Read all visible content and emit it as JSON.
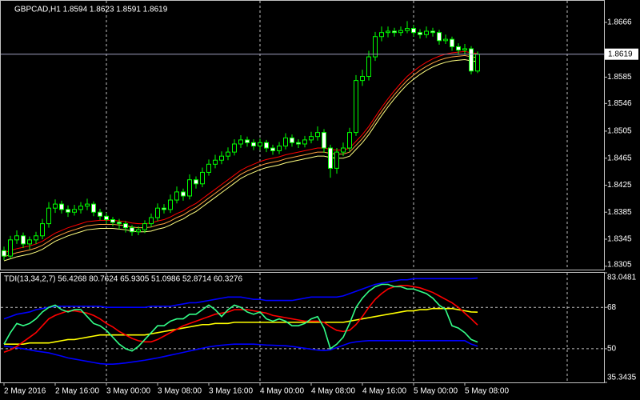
{
  "chart_data": [
    {
      "type": "candlestick",
      "title": "GBPCAD,H1  1.8594 1.8623 1.8591 1.8619",
      "categories": [
        "2 May 2016",
        null,
        null,
        null,
        null,
        null,
        null,
        null,
        "2 May 16:00",
        null,
        null,
        null,
        null,
        null,
        null,
        null,
        "3 May 00:00",
        null,
        null,
        null,
        null,
        null,
        null,
        null,
        "3 May 08:00",
        null,
        null,
        null,
        null,
        null,
        null,
        null,
        "3 May 16:00",
        null,
        null,
        null,
        null,
        null,
        null,
        null,
        "4 May 00:00",
        null,
        null,
        null,
        null,
        null,
        null,
        null,
        "4 May 08:00",
        null,
        null,
        null,
        null,
        null,
        null,
        null,
        "4 May 16:00",
        null,
        null,
        null,
        null,
        null,
        null,
        null,
        "5 May 00:00",
        null,
        null,
        null,
        null,
        null,
        null,
        null,
        "5 May 08:00",
        null,
        null
      ],
      "open": [
        1.8328,
        1.832,
        1.8344,
        1.835,
        1.8338,
        1.8344,
        1.835,
        1.8368,
        1.8391,
        1.8397,
        1.8389,
        1.8385,
        1.8389,
        1.8394,
        1.8397,
        1.8385,
        1.8379,
        1.8374,
        1.837,
        1.8368,
        1.8362,
        1.8356,
        1.8359,
        1.8368,
        1.8377,
        1.8391,
        1.8389,
        1.8403,
        1.8415,
        1.8409,
        1.8433,
        1.8427,
        1.8444,
        1.8456,
        1.8462,
        1.8468,
        1.8474,
        1.8486,
        1.8492,
        1.8488,
        1.8483,
        1.8488,
        1.848,
        1.8476,
        1.8483,
        1.8495,
        1.8488,
        1.8486,
        1.8492,
        1.8497,
        1.8503,
        1.848,
        1.845,
        1.8474,
        1.848,
        1.8503,
        1.858,
        1.8586,
        1.8615,
        1.8645,
        1.8651,
        1.8653,
        1.8651,
        1.8654,
        1.8657,
        1.8651,
        1.8648,
        1.8653,
        1.8651,
        1.8639,
        1.8641,
        1.863,
        1.8625,
        1.8627,
        1.8594
      ],
      "high": [
        1.8334,
        1.835,
        1.8358,
        1.8355,
        1.8349,
        1.8356,
        1.8375,
        1.84,
        1.8404,
        1.8402,
        1.8395,
        1.8396,
        1.84,
        1.8405,
        1.8401,
        1.839,
        1.8384,
        1.8378,
        1.8375,
        1.8372,
        1.8366,
        1.8364,
        1.8373,
        1.8383,
        1.8398,
        1.8397,
        1.8411,
        1.8423,
        1.842,
        1.8441,
        1.8438,
        1.8451,
        1.8463,
        1.847,
        1.8475,
        1.8481,
        1.8493,
        1.8499,
        1.8497,
        1.8493,
        1.8494,
        1.8492,
        1.8485,
        1.8489,
        1.8502,
        1.85,
        1.8493,
        1.8498,
        1.8504,
        1.8512,
        1.8508,
        1.8485,
        1.848,
        1.8488,
        1.851,
        1.8588,
        1.8596,
        1.8624,
        1.8652,
        1.866,
        1.866,
        1.8658,
        1.866,
        1.8668,
        1.8662,
        1.8656,
        1.866,
        1.8658,
        1.8655,
        1.8648,
        1.8645,
        1.8635,
        1.8634,
        1.8631,
        1.8623
      ],
      "low": [
        1.8314,
        1.8316,
        1.8338,
        1.8332,
        1.833,
        1.8338,
        1.8345,
        1.8362,
        1.8384,
        1.8383,
        1.8378,
        1.838,
        1.8383,
        1.8388,
        1.8379,
        1.8373,
        1.8368,
        1.8364,
        1.836,
        1.8355,
        1.835,
        1.8351,
        1.8354,
        1.8363,
        1.8372,
        1.8383,
        1.8384,
        1.8398,
        1.8402,
        1.8404,
        1.842,
        1.8422,
        1.8439,
        1.845,
        1.8456,
        1.8462,
        1.8469,
        1.848,
        1.8482,
        1.8477,
        1.8477,
        1.8474,
        1.847,
        1.8471,
        1.8478,
        1.8482,
        1.848,
        1.8481,
        1.8487,
        1.8491,
        1.8473,
        1.8436,
        1.8442,
        1.8468,
        1.8475,
        1.8498,
        1.8572,
        1.858,
        1.8609,
        1.8638,
        1.8644,
        1.8645,
        1.8646,
        1.865,
        1.8645,
        1.8642,
        1.8643,
        1.8645,
        1.8633,
        1.8634,
        1.8624,
        1.8618,
        1.8619,
        1.8589,
        1.8591
      ],
      "close": [
        1.832,
        1.8344,
        1.835,
        1.8338,
        1.8344,
        1.835,
        1.8368,
        1.8391,
        1.8397,
        1.8389,
        1.8385,
        1.8389,
        1.8394,
        1.8397,
        1.8385,
        1.8379,
        1.8374,
        1.837,
        1.8368,
        1.8362,
        1.8356,
        1.8359,
        1.8368,
        1.8377,
        1.8391,
        1.8389,
        1.8403,
        1.8415,
        1.8409,
        1.8433,
        1.8427,
        1.8444,
        1.8456,
        1.8462,
        1.8468,
        1.8474,
        1.8486,
        1.8492,
        1.8488,
        1.8483,
        1.8488,
        1.848,
        1.8476,
        1.8483,
        1.8495,
        1.8488,
        1.8486,
        1.8492,
        1.8497,
        1.8503,
        1.848,
        1.845,
        1.8474,
        1.848,
        1.8503,
        1.858,
        1.8586,
        1.8615,
        1.8645,
        1.8651,
        1.8653,
        1.8651,
        1.8654,
        1.8657,
        1.8651,
        1.8648,
        1.8653,
        1.8651,
        1.8639,
        1.8641,
        1.863,
        1.8625,
        1.8627,
        1.8594,
        1.8619
      ],
      "up_color": "#000000",
      "down_color": "#ffffff",
      "wick_color": "#00ff00",
      "series": [
        {
          "color": "#ff0000",
          "values": [
            1.8325,
            1.8328,
            1.8331,
            1.8333,
            1.8335,
            1.8338,
            1.8342,
            1.8348,
            1.8354,
            1.8358,
            1.8362,
            1.8365,
            1.8368,
            1.8371,
            1.8372,
            1.8373,
            1.8373,
            1.8373,
            1.8372,
            1.8371,
            1.8369,
            1.8368,
            1.8368,
            1.8369,
            1.8372,
            1.8374,
            1.8378,
            1.8383,
            1.8387,
            1.8393,
            1.8398,
            1.8405,
            1.8412,
            1.8419,
            1.8426,
            1.8433,
            1.844,
            1.8447,
            1.8452,
            1.8456,
            1.846,
            1.8463,
            1.8465,
            1.8467,
            1.847,
            1.8472,
            1.8474,
            1.8476,
            1.8478,
            1.848,
            1.848,
            1.8478,
            1.8477,
            1.8477,
            1.848,
            1.849,
            1.85,
            1.8512,
            1.8526,
            1.854,
            1.8553,
            1.8565,
            1.8576,
            1.8586,
            1.8594,
            1.8601,
            1.8607,
            1.8612,
            1.8616,
            1.8619,
            1.8621,
            1.8622,
            1.8623,
            1.8621,
            1.862
          ]
        },
        {
          "color": "#ffa040",
          "values": [
            1.8319,
            1.8322,
            1.8325,
            1.8327,
            1.8329,
            1.8332,
            1.8336,
            1.8342,
            1.8348,
            1.8352,
            1.8356,
            1.8359,
            1.8362,
            1.8365,
            1.8366,
            1.8367,
            1.8367,
            1.8367,
            1.8366,
            1.8365,
            1.8363,
            1.8362,
            1.8362,
            1.8363,
            1.8366,
            1.8368,
            1.8372,
            1.8377,
            1.8381,
            1.8387,
            1.8392,
            1.8399,
            1.8406,
            1.8413,
            1.842,
            1.8427,
            1.8434,
            1.8441,
            1.8446,
            1.845,
            1.8454,
            1.8457,
            1.8459,
            1.8461,
            1.8464,
            1.8466,
            1.8468,
            1.847,
            1.8472,
            1.8474,
            1.8474,
            1.8472,
            1.8471,
            1.8471,
            1.8474,
            1.8484,
            1.8494,
            1.8506,
            1.852,
            1.8534,
            1.8547,
            1.8559,
            1.857,
            1.858,
            1.8588,
            1.8595,
            1.8601,
            1.8606,
            1.861,
            1.8613,
            1.8615,
            1.8616,
            1.8617,
            1.8615,
            1.8614
          ]
        },
        {
          "color": "#ffff80",
          "values": [
            1.8313,
            1.8316,
            1.8319,
            1.8321,
            1.8323,
            1.8326,
            1.833,
            1.8336,
            1.8342,
            1.8346,
            1.835,
            1.8353,
            1.8356,
            1.8359,
            1.836,
            1.8361,
            1.8361,
            1.8361,
            1.836,
            1.8359,
            1.8357,
            1.8356,
            1.8356,
            1.8357,
            1.836,
            1.8362,
            1.8366,
            1.8371,
            1.8375,
            1.8381,
            1.8386,
            1.8393,
            1.84,
            1.8407,
            1.8414,
            1.8421,
            1.8428,
            1.8435,
            1.844,
            1.8444,
            1.8448,
            1.8451,
            1.8453,
            1.8455,
            1.8458,
            1.846,
            1.8462,
            1.8464,
            1.8466,
            1.8468,
            1.8468,
            1.8466,
            1.8465,
            1.8465,
            1.8468,
            1.8478,
            1.8488,
            1.85,
            1.8514,
            1.8528,
            1.8541,
            1.8553,
            1.8564,
            1.8574,
            1.8582,
            1.8589,
            1.8595,
            1.86,
            1.8604,
            1.8607,
            1.8609,
            1.861,
            1.8611,
            1.8609,
            1.8608
          ]
        }
      ],
      "last_price": 1.8619,
      "ylim": [
        1.83,
        1.8698
      ],
      "yticks": [
        1.8305,
        1.8345,
        1.8385,
        1.8425,
        1.8465,
        1.8505,
        1.8546,
        1.8585,
        1.8666
      ]
    },
    {
      "type": "line",
      "title": "TDI(13,34,2,7) 56.4268 80.7624 65.9305 51.0986 52.8714 60.3276",
      "series": [
        {
          "color": "#0000ff",
          "values": [
            63,
            64,
            65,
            65.5,
            66,
            67,
            67.5,
            68,
            68.5,
            68.5,
            68.5,
            68.5,
            68.5,
            68.5,
            68.5,
            68.5,
            68,
            68,
            68,
            68,
            68,
            68,
            68,
            68.5,
            68.5,
            68.5,
            68.5,
            69,
            69.5,
            70,
            70,
            70.5,
            71,
            71.5,
            72,
            72.5,
            72.5,
            72.5,
            72,
            71.5,
            71.5,
            71,
            71,
            71,
            71,
            71,
            71.5,
            72,
            72.5,
            72.5,
            72.5,
            72.5,
            72.5,
            73,
            74,
            75,
            76,
            77,
            78,
            78.5,
            79,
            79.5,
            80,
            80,
            80.5,
            80.5,
            80.5,
            80.5,
            80.5,
            80.5,
            80.5,
            80.5,
            80.5,
            80.5,
            80.7624
          ]
        },
        {
          "color": "#0000ff",
          "values": [
            51.2,
            50.8,
            50.4,
            50,
            49.5,
            49,
            48.6,
            48.2,
            47.5,
            46.8,
            46,
            45.5,
            45,
            44.5,
            44,
            43.5,
            43.3,
            43.3,
            43.5,
            43.8,
            44.2,
            44.6,
            45,
            45.5,
            46,
            46.6,
            47.2,
            47.8,
            48.4,
            49,
            49.6,
            50.2,
            50.8,
            51.2,
            51.5,
            51.8,
            52,
            52,
            52,
            52,
            51.8,
            51.6,
            51.5,
            51.4,
            51.3,
            51,
            50.6,
            50.2,
            49.8,
            49.4,
            49.2,
            49.5,
            50.5,
            51.5,
            52.5,
            53,
            53.3,
            53.5,
            53.5,
            53.5,
            53.5,
            53.5,
            53.5,
            53.5,
            53.5,
            53.5,
            53.5,
            53.5,
            53.5,
            53.5,
            53.5,
            53.5,
            53.5,
            52,
            51.0986
          ]
        },
        {
          "color": "#ffff00",
          "values": [
            52,
            52,
            52,
            52,
            52.5,
            52.5,
            52.5,
            52.5,
            53,
            53.5,
            54,
            54,
            54.5,
            55,
            55.5,
            56,
            56,
            56,
            56,
            56,
            56,
            56,
            56,
            56.5,
            57,
            57.5,
            58,
            58.5,
            59,
            59.5,
            60,
            60.5,
            60.5,
            61,
            61,
            61,
            61.5,
            61.5,
            61.5,
            61.5,
            61.5,
            61.5,
            61.5,
            61.5,
            61.5,
            61.5,
            61.5,
            61.5,
            61.5,
            61.5,
            61.5,
            61.5,
            61.5,
            61.5,
            62,
            62.5,
            63,
            63.5,
            64,
            64.5,
            65,
            65.5,
            66,
            66.5,
            66.5,
            67,
            67,
            67.5,
            67.5,
            67.5,
            67.5,
            67,
            66.5,
            66,
            65.9305
          ]
        },
        {
          "color": "#ff0000",
          "values": [
            48.5,
            49.5,
            51,
            53,
            55,
            57,
            60,
            63,
            64.5,
            65.5,
            66.5,
            66.5,
            66,
            65.5,
            64.5,
            63,
            61,
            59.5,
            57.5,
            56,
            54.5,
            53.5,
            53,
            53,
            54,
            55.5,
            57,
            58.5,
            60,
            61,
            62,
            63,
            64,
            65,
            65.5,
            66,
            67,
            67,
            67,
            66.5,
            66,
            65.5,
            64.5,
            64,
            63.5,
            63,
            62.5,
            62,
            62,
            62,
            61.5,
            59.5,
            58,
            57.5,
            58,
            60.5,
            64,
            68,
            71.5,
            74,
            76,
            77,
            77.5,
            77.5,
            77,
            76.5,
            75.5,
            74.5,
            73,
            71.5,
            70,
            68,
            65.5,
            63,
            60.3276
          ]
        },
        {
          "color": "#33ff88",
          "values": [
            52,
            57,
            61,
            60,
            61,
            63,
            66,
            68,
            69,
            67,
            66,
            67,
            67,
            64,
            61,
            60,
            58,
            55,
            52,
            50,
            49,
            51,
            54,
            57,
            60,
            60,
            62,
            63,
            63,
            65,
            65,
            67,
            69,
            67,
            64,
            67,
            69,
            68,
            66,
            65,
            66,
            63,
            62,
            63,
            62,
            60,
            60,
            61,
            63,
            64,
            59,
            50,
            52,
            55,
            61,
            68,
            72,
            75,
            77,
            78,
            78,
            77,
            77,
            76,
            76,
            75,
            74,
            72,
            69,
            67,
            60,
            59,
            57,
            54,
            52.8714
          ]
        }
      ],
      "ylim": [
        35.3435,
        83.0481
      ],
      "yticks": [
        35.3435,
        50,
        68,
        83.0481
      ],
      "grid": true
    }
  ]
}
